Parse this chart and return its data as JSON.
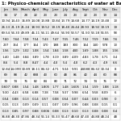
{
  "title": "1: Physico-chemical characteristics of water at Barwala Link Canal",
  "columns": [
    "Jan",
    "Feb",
    "March",
    "April",
    "May",
    "June",
    "July",
    "Aug",
    "Sept",
    "Oct",
    "Nov",
    "Dec"
  ],
  "rows": [
    [
      "34",
      "17",
      "28",
      "22",
      "23",
      "23",
      "24",
      "23",
      "22",
      "23",
      "19",
      "14"
    ],
    [
      "10.94",
      "14.43",
      "16.89",
      "14.08",
      "13.88",
      "10.84",
      "13.79",
      "14.68",
      "14.77",
      "14.19",
      "13.48",
      "13"
    ],
    [
      "26.13",
      "21.19",
      "21.24",
      "18.93",
      "19.52",
      "19.19",
      "18.40",
      "24.44",
      "28.93",
      "18.92",
      "19.19",
      "19"
    ],
    [
      "69.54",
      "54.30",
      "49.89",
      "46.11",
      "54.11",
      "49.64",
      "54.90",
      "53.57",
      "51.50",
      "53.18",
      "56.55",
      "58"
    ],
    [
      "7.60",
      "7.64",
      "7.58",
      "7.54",
      "7.43",
      "7.47",
      "7.55",
      "7.46",
      "7.52",
      "7.59",
      "7.66",
      "7.6"
    ],
    [
      "237",
      "154",
      "177",
      "164",
      "170",
      "188",
      "183",
      "300",
      "164",
      "140",
      "578",
      "13"
    ],
    [
      "1.56",
      "1.29",
      "1.02",
      "1.08",
      "1.54",
      "1.84",
      "1.58",
      "440",
      "1.69",
      "1.88",
      "155",
      "1.56"
    ],
    [
      "1.40",
      "1.48",
      "3.84",
      "3.89",
      "1.78",
      "3.19",
      "3.89",
      "4.09",
      "4.83",
      "1.78",
      "3.71",
      "3.4"
    ],
    [
      "8.6",
      "5.4",
      "8.8",
      "8.47",
      "4.4",
      "4.0",
      "5.4",
      "4.0",
      "6.2",
      "4.3",
      "4.9",
      "6.6"
    ],
    [
      "12.84",
      "14.099",
      "10.89",
      "18.11",
      "84.32",
      "4.71",
      "9.34",
      "9.91",
      "44088",
      "84.32",
      "10.34",
      "8"
    ],
    [
      "69",
      "88",
      "42",
      "688",
      "43",
      "60",
      "48",
      "86",
      "42",
      "44",
      "60",
      "88"
    ],
    [
      "78",
      "74",
      "76",
      "82",
      "84",
      "80",
      "71",
      "72",
      "74",
      "74",
      "76",
      "77"
    ],
    [
      "0.607",
      "0.88",
      "1.54",
      "1.48",
      "1.805",
      "1.77",
      "1.48",
      "1.605",
      "1.54",
      "1.59",
      "1.88",
      "1.18"
    ],
    [
      "9.30",
      "4.43",
      "6.58",
      "6.88",
      "7.38",
      "7.58",
      "9.37",
      "9.98",
      "6.54",
      "9.58",
      "8.09",
      "6"
    ],
    [
      "0.54",
      "0.88",
      "0.13",
      "0.14",
      "0.57",
      "0.08",
      "0.54",
      "0.07",
      "0.44",
      "0.03",
      "0.98",
      "0"
    ],
    [
      "0.15",
      "0.13",
      "0.09",
      "0.09",
      "0.11",
      "0.07",
      "0.09",
      "0.96",
      "0.88",
      "0.08",
      "0.15",
      "0.1"
    ],
    [
      "0.13",
      "0.85",
      "0.97",
      "0.88",
      "0.006",
      "0.08",
      "0.13",
      "0.10",
      "0.13",
      "0.08",
      "0.08",
      "0.4"
    ],
    [
      "36.88",
      "48.30",
      "47.86",
      "48.34",
      "56.14",
      "56.33",
      "56.47",
      "48.68",
      "47.40",
      "44.88",
      "48.24",
      "48"
    ]
  ],
  "bg_color": "#ffffff",
  "header_color": "#e0e0e0",
  "line_color": "#bbbbbb",
  "font_size": 2.8,
  "title_font_size": 3.8
}
